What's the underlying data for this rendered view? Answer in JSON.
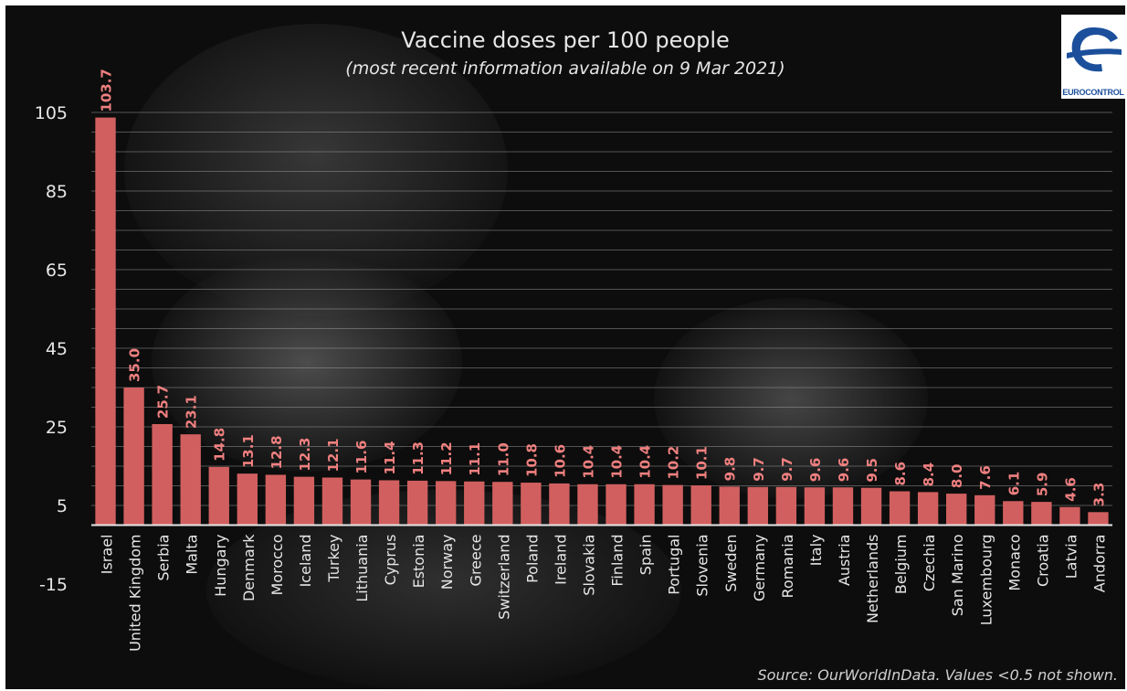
{
  "chart_data": {
    "type": "bar",
    "title": "Vaccine doses per 100 people",
    "subtitle": "(most recent information available on 9 Mar 2021)",
    "source": "Source: OurWorldInData. Values <0.5 not shown.",
    "categories": [
      "Israel",
      "United Kingdom",
      "Serbia",
      "Malta",
      "Hungary",
      "Denmark",
      "Morocco",
      "Iceland",
      "Turkey",
      "Lithuania",
      "Cyprus",
      "Estonia",
      "Norway",
      "Greece",
      "Switzerland",
      "Poland",
      "Ireland",
      "Slovakia",
      "Finland",
      "Spain",
      "Portugal",
      "Slovenia",
      "Sweden",
      "Germany",
      "Romania",
      "Italy",
      "Austria",
      "Netherlands",
      "Belgium",
      "Czechia",
      "San Marino",
      "Luxembourg",
      "Monaco",
      "Croatia",
      "Latvia",
      "Andorra"
    ],
    "values": [
      103.7,
      35.0,
      25.7,
      23.1,
      14.8,
      13.1,
      12.8,
      12.3,
      12.1,
      11.6,
      11.4,
      11.3,
      11.2,
      11.1,
      11.0,
      10.8,
      10.6,
      10.4,
      10.4,
      10.4,
      10.2,
      10.1,
      9.8,
      9.7,
      9.7,
      9.6,
      9.6,
      9.5,
      8.6,
      8.4,
      8.0,
      7.6,
      6.1,
      5.9,
      4.6,
      3.3
    ],
    "value_labels": [
      "103.7",
      "35.0",
      "25.7",
      "23.1",
      "14.8",
      "13.1",
      "12.8",
      "12.3",
      "12.1",
      "11.6",
      "11.4",
      "11.3",
      "11.2",
      "11.1",
      "11.0",
      "10.8",
      "10.6",
      "10.4",
      "10.4",
      "10.4",
      "10.2",
      "10.1",
      "9.8",
      "9.7",
      "9.7",
      "9.6",
      "9.6",
      "9.5",
      "8.6",
      "8.4",
      "8.0",
      "7.6",
      "6.1",
      "5.9",
      "4.6",
      "3.3"
    ],
    "yticks": [
      "105",
      "85",
      "65",
      "45",
      "25",
      "5",
      "-15"
    ],
    "ylim": [
      -15,
      105
    ],
    "baseline": 0,
    "grid": true,
    "bar_color": "#d25f5f",
    "label_color": "#f08080",
    "text_color": "#e6e6e6"
  },
  "logo": {
    "text": "EUROCONTROL"
  }
}
